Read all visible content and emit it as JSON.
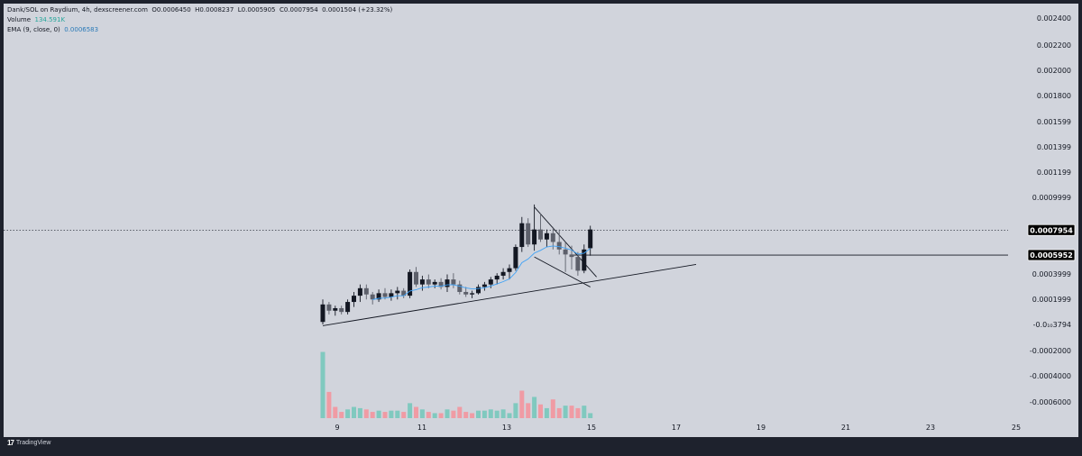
{
  "legend": {
    "symbol_line": "Dank/SOL on Raydium, 4h, dexscreener.com",
    "open": "O0.0006450",
    "high": "H0.0008237",
    "low": "L0.0005905",
    "close": "C0.0007954",
    "change": "0.0001504 (+23.32%)",
    "volume_label": "Volume",
    "volume_value": "134.591K",
    "ema_label": "EMA (9, close, 0)",
    "ema_value": "0.0006583"
  },
  "branding": {
    "logo_mark": "17",
    "name": "TradingView"
  },
  "colors": {
    "background": "#d1d4dc",
    "candle_up": "#131722",
    "candle_down": "#5d606b",
    "volume_up": "#80c9bf",
    "volume_down": "#f09ba4",
    "ema": "#3fa2f6",
    "price_label_bg": "#000000"
  },
  "chart_data": {
    "type": "candlestick",
    "title": "Dank/SOL on Raydium, 4h, dexscreener.com",
    "x_ticks": [
      "9",
      "11",
      "13",
      "15",
      "17",
      "19",
      "21",
      "23",
      "25"
    ],
    "y_ticks": [
      "0.002400",
      "0.002200",
      "0.002000",
      "0.001800",
      "0.001599",
      "0.001399",
      "0.001199",
      "0.0009999",
      "0.0003999",
      "0.0001999",
      "-0.0₁₀3794",
      "-0.0002000",
      "-0.0004000",
      "-0.0006000"
    ],
    "y_range": [
      -0.00071,
      0.00255
    ],
    "price_labels": [
      "0.0007954",
      "0.0005952"
    ],
    "current_price": 0.0007954,
    "level_price": 0.0005952,
    "candles": [
      {
        "o": 6e-05,
        "h": 0.00024,
        "l": 4e-05,
        "c": 0.0002
      },
      {
        "o": 0.0002,
        "h": 0.00022,
        "l": 0.00012,
        "c": 0.00015
      },
      {
        "o": 0.00015,
        "h": 0.00019,
        "l": 0.00011,
        "c": 0.00017
      },
      {
        "o": 0.00017,
        "h": 0.00019,
        "l": 0.00012,
        "c": 0.00014
      },
      {
        "o": 0.00014,
        "h": 0.00024,
        "l": 0.00012,
        "c": 0.00022
      },
      {
        "o": 0.00022,
        "h": 0.0003,
        "l": 0.00018,
        "c": 0.00027
      },
      {
        "o": 0.00027,
        "h": 0.00036,
        "l": 0.00022,
        "c": 0.00033
      },
      {
        "o": 0.00033,
        "h": 0.00036,
        "l": 0.00024,
        "c": 0.00028
      },
      {
        "o": 0.00028,
        "h": 0.0003,
        "l": 0.0002,
        "c": 0.00024
      },
      {
        "o": 0.00024,
        "h": 0.00032,
        "l": 0.00022,
        "c": 0.00029
      },
      {
        "o": 0.00029,
        "h": 0.00033,
        "l": 0.00024,
        "c": 0.00026
      },
      {
        "o": 0.00026,
        "h": 0.00032,
        "l": 0.00023,
        "c": 0.00029
      },
      {
        "o": 0.00029,
        "h": 0.00034,
        "l": 0.00024,
        "c": 0.00031
      },
      {
        "o": 0.00031,
        "h": 0.00033,
        "l": 0.00025,
        "c": 0.00027
      },
      {
        "o": 0.00027,
        "h": 0.00048,
        "l": 0.00025,
        "c": 0.00046
      },
      {
        "o": 0.00046,
        "h": 0.0005,
        "l": 0.00034,
        "c": 0.00036
      },
      {
        "o": 0.00036,
        "h": 0.00043,
        "l": 0.00031,
        "c": 0.0004
      },
      {
        "o": 0.0004,
        "h": 0.00044,
        "l": 0.00033,
        "c": 0.00036
      },
      {
        "o": 0.00036,
        "h": 0.0004,
        "l": 0.00033,
        "c": 0.00038
      },
      {
        "o": 0.00038,
        "h": 0.00041,
        "l": 0.00032,
        "c": 0.00034
      },
      {
        "o": 0.00034,
        "h": 0.00044,
        "l": 0.0003,
        "c": 0.0004
      },
      {
        "o": 0.0004,
        "h": 0.00045,
        "l": 0.00033,
        "c": 0.00036
      },
      {
        "o": 0.00036,
        "h": 0.00039,
        "l": 0.00028,
        "c": 0.0003
      },
      {
        "o": 0.0003,
        "h": 0.00034,
        "l": 0.00026,
        "c": 0.00028
      },
      {
        "o": 0.00028,
        "h": 0.00031,
        "l": 0.00025,
        "c": 0.00029
      },
      {
        "o": 0.00029,
        "h": 0.00036,
        "l": 0.00028,
        "c": 0.00034
      },
      {
        "o": 0.00034,
        "h": 0.00038,
        "l": 0.00031,
        "c": 0.00036
      },
      {
        "o": 0.00036,
        "h": 0.00042,
        "l": 0.00033,
        "c": 0.0004
      },
      {
        "o": 0.0004,
        "h": 0.00045,
        "l": 0.00036,
        "c": 0.00043
      },
      {
        "o": 0.00043,
        "h": 0.00049,
        "l": 0.0004,
        "c": 0.00046
      },
      {
        "o": 0.00046,
        "h": 0.00052,
        "l": 0.0004,
        "c": 0.00049
      },
      {
        "o": 0.00049,
        "h": 0.00068,
        "l": 0.00047,
        "c": 0.00066
      },
      {
        "o": 0.00066,
        "h": 0.0009,
        "l": 0.00062,
        "c": 0.00085
      },
      {
        "o": 0.00085,
        "h": 0.00089,
        "l": 0.00066,
        "c": 0.00068
      },
      {
        "o": 0.00068,
        "h": 0.001,
        "l": 0.00063,
        "c": 0.0008
      },
      {
        "o": 0.0008,
        "h": 0.00093,
        "l": 0.0007,
        "c": 0.00072
      },
      {
        "o": 0.00072,
        "h": 0.0008,
        "l": 0.00066,
        "c": 0.00077
      },
      {
        "o": 0.00077,
        "h": 0.00082,
        "l": 0.00064,
        "c": 0.0007
      },
      {
        "o": 0.0007,
        "h": 0.0008,
        "l": 0.0006,
        "c": 0.00064
      },
      {
        "o": 0.00064,
        "h": 0.0007,
        "l": 0.00046,
        "c": 0.0006
      },
      {
        "o": 0.0006,
        "h": 0.00067,
        "l": 0.00048,
        "c": 0.00058
      },
      {
        "o": 0.00058,
        "h": 0.00062,
        "l": 0.00043,
        "c": 0.00047
      },
      {
        "o": 0.00047,
        "h": 0.00068,
        "l": 0.00045,
        "c": 0.00064
      },
      {
        "o": 0.00065,
        "h": 0.00083,
        "l": 0.00059,
        "c": 0.0008
      }
    ],
    "volumes": [
      {
        "v": 0.00053,
        "up": true
      },
      {
        "v": 0.00021,
        "up": false
      },
      {
        "v": 9e-05,
        "up": false
      },
      {
        "v": 5e-05,
        "up": false
      },
      {
        "v": 7e-05,
        "up": true
      },
      {
        "v": 9e-05,
        "up": true
      },
      {
        "v": 8e-05,
        "up": true
      },
      {
        "v": 7e-05,
        "up": false
      },
      {
        "v": 5e-05,
        "up": false
      },
      {
        "v": 6e-05,
        "up": true
      },
      {
        "v": 5e-05,
        "up": false
      },
      {
        "v": 6e-05,
        "up": true
      },
      {
        "v": 6e-05,
        "up": true
      },
      {
        "v": 5e-05,
        "up": false
      },
      {
        "v": 0.00012,
        "up": true
      },
      {
        "v": 9e-05,
        "up": false
      },
      {
        "v": 7e-05,
        "up": true
      },
      {
        "v": 5e-05,
        "up": false
      },
      {
        "v": 4e-05,
        "up": true
      },
      {
        "v": 4e-05,
        "up": false
      },
      {
        "v": 7e-05,
        "up": true
      },
      {
        "v": 6e-05,
        "up": false
      },
      {
        "v": 9e-05,
        "up": false
      },
      {
        "v": 5e-05,
        "up": false
      },
      {
        "v": 4e-05,
        "up": false
      },
      {
        "v": 6e-05,
        "up": true
      },
      {
        "v": 6e-05,
        "up": true
      },
      {
        "v": 7e-05,
        "up": true
      },
      {
        "v": 6e-05,
        "up": true
      },
      {
        "v": 7e-05,
        "up": true
      },
      {
        "v": 4e-05,
        "up": true
      },
      {
        "v": 0.00012,
        "up": true
      },
      {
        "v": 0.00022,
        "up": false
      },
      {
        "v": 0.00012,
        "up": false
      },
      {
        "v": 0.00017,
        "up": true
      },
      {
        "v": 0.00011,
        "up": false
      },
      {
        "v": 8e-05,
        "up": true
      },
      {
        "v": 0.00015,
        "up": false
      },
      {
        "v": 8e-05,
        "up": false
      },
      {
        "v": 0.0001,
        "up": true
      },
      {
        "v": 0.0001,
        "up": false
      },
      {
        "v": 8e-05,
        "up": false
      },
      {
        "v": 0.0001,
        "up": true
      },
      {
        "v": 4e-05,
        "up": true
      }
    ],
    "trendlines": [
      {
        "i1": 0,
        "p1": 3e-05,
        "i2": 60,
        "p2": 0.00052
      },
      {
        "i1": 34,
        "p1": 0.00098,
        "i2": 44,
        "p2": 0.00042
      },
      {
        "i1": 34,
        "p1": 0.00058,
        "i2": 43,
        "p2": 0.00034
      }
    ]
  }
}
